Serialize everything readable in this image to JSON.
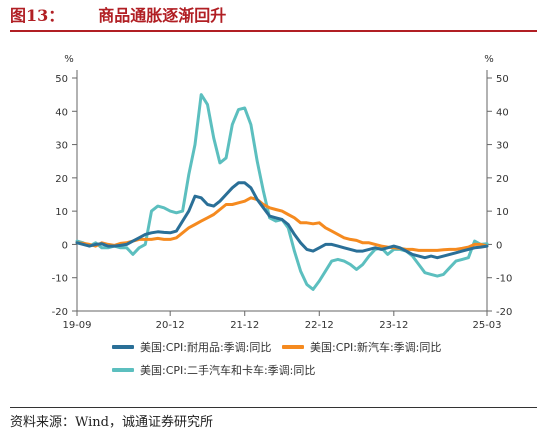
{
  "header": {
    "fig_no": "图13：",
    "title": "商品通胀逐渐回升"
  },
  "source": "资料来源：Wind，诚通证券研究所",
  "chart_data": {
    "type": "line",
    "x_ticks": [
      "19-09",
      "20-12",
      "21-12",
      "22-12",
      "23-12",
      "25-03"
    ],
    "x_tick_positions": [
      0,
      15,
      27,
      39,
      51,
      66
    ],
    "x_range": [
      0,
      66
    ],
    "ylim": [
      -20,
      50
    ],
    "y_ticks": [
      -20,
      -10,
      0,
      10,
      20,
      30,
      40,
      50
    ],
    "y_unit_left": "%",
    "y_unit_right": "%",
    "grid": false,
    "legend_position": "bottom",
    "series": [
      {
        "name": "美国:CPI:耐用品:季调:同比",
        "color": "#2a6f97",
        "values": [
          0.5,
          0,
          -0.5,
          0,
          0.2,
          -0.5,
          -0.5,
          -0.3,
          0,
          1,
          2,
          3,
          3.5,
          3.8,
          3.6,
          3.5,
          4,
          7,
          10,
          14.5,
          14,
          12,
          11.5,
          13,
          15,
          17,
          18.5,
          18.5,
          17,
          13.5,
          11,
          8.5,
          8,
          7.5,
          6,
          3,
          0.5,
          -1.5,
          -2,
          -1,
          0,
          0,
          -0.5,
          -1,
          -1.5,
          -2,
          -2,
          -1.5,
          -1,
          -1.5,
          -1,
          -0.5,
          -1,
          -2,
          -3,
          -3.5,
          -4,
          -3.5,
          -4,
          -3.5,
          -3,
          -2.5,
          -2,
          -1.5,
          -1,
          -0.8,
          -0.5
        ]
      },
      {
        "name": "美国:CPI:新汽车:季调:同比",
        "color": "#f58a1f",
        "values": [
          0.5,
          0.3,
          0,
          -0.5,
          0.5,
          0,
          -0.3,
          0.3,
          0.5,
          1,
          1.5,
          1.5,
          1.5,
          1.8,
          1.5,
          1.5,
          2,
          3.5,
          5,
          6,
          7,
          8,
          9,
          10.5,
          12,
          12,
          12.5,
          13,
          14,
          13.5,
          12,
          11,
          10.5,
          10,
          9,
          8,
          6.5,
          6.5,
          6.2,
          6.5,
          5,
          4,
          3,
          2,
          1.5,
          1.2,
          0.5,
          0.5,
          0,
          -0.5,
          -0.8,
          -1,
          -1.2,
          -1.5,
          -1.5,
          -1.8,
          -1.8,
          -1.8,
          -1.8,
          -1.6,
          -1.5,
          -1.5,
          -1.2,
          -0.8,
          0,
          0,
          -0.5
        ]
      },
      {
        "name": "美国:CPI:二手汽车和卡车:季调:同比",
        "color": "#5cbfbf",
        "values": [
          1,
          0.5,
          -0.5,
          0.5,
          -1,
          -1,
          -0.5,
          -1,
          -1,
          -3,
          -1,
          0,
          10,
          11.5,
          11,
          10,
          9.5,
          10,
          21,
          30,
          45,
          42,
          32,
          24.5,
          26,
          36,
          40.5,
          41,
          36,
          25,
          16,
          8,
          7,
          7.5,
          5,
          -2,
          -8,
          -12,
          -13.5,
          -11,
          -8,
          -5,
          -4.5,
          -5,
          -6,
          -7.5,
          -6,
          -3.5,
          -1.5,
          -1,
          -3,
          -1.5,
          -1.5,
          -2,
          -3.5,
          -6,
          -8.5,
          -9,
          -9.5,
          -9,
          -7,
          -5,
          -4.5,
          -4,
          1,
          0,
          0.2
        ]
      }
    ]
  }
}
